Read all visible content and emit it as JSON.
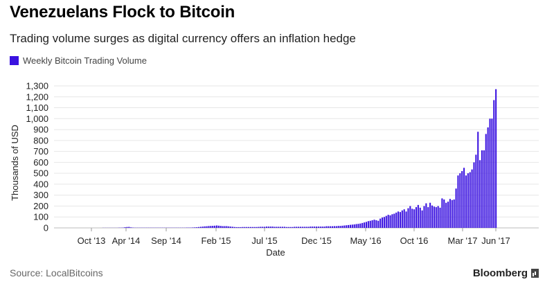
{
  "title": "Venezuelans Flock to Bitcoin",
  "subtitle": "Trading volume surges as digital currency offers an inflation hedge",
  "legend": {
    "label": "Weekly Bitcoin Trading Volume",
    "color": "#3a12e0"
  },
  "source": "Source: LocalBitcoins",
  "brand": "Bloomberg",
  "chart_data": {
    "type": "bar",
    "title": "Venezuelans Flock to Bitcoin",
    "subtitle": "Trading volume surges as digital currency offers an inflation hedge",
    "xlabel": "Date",
    "ylabel": "Thousands of USD",
    "ylim": [
      0,
      1300
    ],
    "yticks": [
      0,
      100,
      200,
      300,
      400,
      500,
      600,
      700,
      800,
      900,
      1000,
      1100,
      1200,
      1300
    ],
    "ytick_labels": [
      "0",
      "100",
      "200",
      "300",
      "400",
      "500",
      "600",
      "700",
      "800",
      "900",
      "1,000",
      "1,100",
      "1,200",
      "1,300"
    ],
    "xticks": [
      "Oct '13",
      "Apr '14",
      "Sep '14",
      "Feb '15",
      "Jul '15",
      "Dec '15",
      "May '16",
      "Oct '16",
      "Mar '17",
      "Jun '17"
    ],
    "grid": true,
    "legend_position": "top-left",
    "series": [
      {
        "name": "Weekly Bitcoin Trading Volume",
        "color": "#3a12e0",
        "values": [
          0,
          0,
          0,
          0,
          0,
          0,
          0,
          0,
          0,
          0,
          0,
          0,
          0,
          0,
          0,
          0,
          0,
          0,
          1,
          1,
          1,
          1,
          1,
          1,
          1,
          1,
          2,
          2,
          3,
          6,
          8,
          9,
          5,
          3,
          2,
          2,
          2,
          2,
          2,
          2,
          2,
          2,
          2,
          2,
          2,
          2,
          2,
          2,
          2,
          2,
          2,
          2,
          2,
          2,
          2,
          2,
          2,
          2,
          2,
          2,
          3,
          3,
          3,
          4,
          5,
          6,
          8,
          10,
          12,
          14,
          15,
          17,
          18,
          19,
          20,
          22,
          20,
          18,
          16,
          16,
          16,
          14,
          12,
          10,
          8,
          7,
          7,
          7,
          8,
          8,
          8,
          8,
          8,
          8,
          8,
          8,
          9,
          10,
          10,
          10,
          12,
          12,
          12,
          12,
          10,
          10,
          10,
          10,
          10,
          10,
          8,
          8,
          8,
          8,
          10,
          10,
          10,
          10,
          10,
          10,
          10,
          10,
          12,
          12,
          12,
          12,
          12,
          12,
          12,
          12,
          15,
          15,
          15,
          15,
          16,
          16,
          18,
          18,
          20,
          22,
          24,
          26,
          28,
          30,
          32,
          35,
          37,
          40,
          45,
          50,
          55,
          62,
          65,
          70,
          75,
          70,
          65,
          85,
          95,
          100,
          110,
          120,
          115,
          125,
          130,
          140,
          150,
          145,
          160,
          170,
          150,
          180,
          200,
          175,
          170,
          190,
          210,
          185,
          160,
          200,
          225,
          190,
          230,
          205,
          195,
          190,
          200,
          185,
          270,
          260,
          230,
          240,
          265,
          255,
          260,
          360,
          480,
          500,
          520,
          550,
          480,
          500,
          510,
          535,
          600,
          670,
          880,
          620,
          710,
          710,
          860,
          920,
          1000,
          1000,
          1170,
          1270
        ]
      }
    ]
  }
}
